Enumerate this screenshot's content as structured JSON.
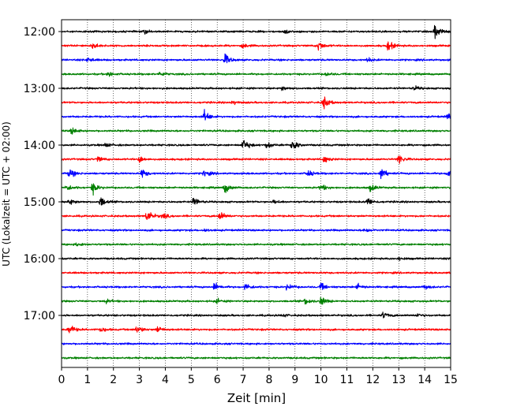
{
  "chart_data": {
    "type": "line",
    "title": "",
    "xlabel": "Zeit  [min]",
    "ylabel": "UTC (Lokalzeit = UTC + 02:00)",
    "xlim": [
      0,
      15
    ],
    "x_ticks": [
      "0",
      "1",
      "2",
      "3",
      "4",
      "5",
      "6",
      "7",
      "8",
      "9",
      "10",
      "11",
      "12",
      "13",
      "14",
      "15"
    ],
    "grid": "vertical dotted lines at each minute",
    "y_tick_labels": [
      "12:00",
      "13:00",
      "14:00",
      "15:00",
      "16:00",
      "17:00"
    ],
    "trace_interval_min": 15,
    "trace_colors": [
      "#000000",
      "#ff0000",
      "#0000ff",
      "#008000"
    ],
    "traces": [
      {
        "start": "12:00",
        "color": "#000000",
        "events": [
          [
            14.4,
            1.0
          ],
          [
            3.2,
            0.3
          ],
          [
            8.6,
            0.3
          ]
        ]
      },
      {
        "start": "12:15",
        "color": "#ff0000",
        "events": [
          [
            1.2,
            0.5
          ],
          [
            9.9,
            0.7
          ],
          [
            12.6,
            0.8
          ],
          [
            7.0,
            0.3
          ]
        ]
      },
      {
        "start": "12:30",
        "color": "#0000ff",
        "events": [
          [
            6.3,
            0.9
          ],
          [
            1.0,
            0.4
          ],
          [
            11.8,
            0.3
          ]
        ]
      },
      {
        "start": "12:45",
        "color": "#008000",
        "events": [
          [
            1.8,
            0.4
          ],
          [
            3.8,
            0.35
          ],
          [
            10.2,
            0.3
          ]
        ]
      },
      {
        "start": "13:00",
        "color": "#000000",
        "events": [
          [
            8.5,
            0.3
          ],
          [
            13.6,
            0.3
          ]
        ]
      },
      {
        "start": "13:15",
        "color": "#ff0000",
        "events": [
          [
            10.1,
            1.0
          ],
          [
            6.6,
            0.3
          ]
        ]
      },
      {
        "start": "13:30",
        "color": "#0000ff",
        "events": [
          [
            5.5,
            0.9
          ],
          [
            14.9,
            0.5
          ]
        ]
      },
      {
        "start": "13:45",
        "color": "#008000",
        "events": [
          [
            0.4,
            0.5
          ]
        ]
      },
      {
        "start": "14:00",
        "color": "#000000",
        "events": [
          [
            7.0,
            1.0
          ],
          [
            8.9,
            0.9
          ],
          [
            7.9,
            0.5
          ],
          [
            1.7,
            0.3
          ]
        ]
      },
      {
        "start": "14:15",
        "color": "#ff0000",
        "events": [
          [
            3.0,
            0.5
          ],
          [
            13.0,
            0.8
          ],
          [
            10.1,
            0.6
          ],
          [
            1.4,
            0.4
          ]
        ]
      },
      {
        "start": "14:30",
        "color": "#0000ff",
        "events": [
          [
            0.3,
            0.7
          ],
          [
            3.1,
            0.7
          ],
          [
            12.3,
            0.9
          ],
          [
            14.9,
            0.7
          ],
          [
            9.5,
            0.5
          ],
          [
            5.5,
            0.5
          ]
        ]
      },
      {
        "start": "14:45",
        "color": "#008000",
        "events": [
          [
            1.2,
            0.8
          ],
          [
            6.3,
            0.8
          ],
          [
            0.2,
            0.5
          ],
          [
            10.0,
            0.5
          ],
          [
            11.9,
            0.6
          ]
        ]
      },
      {
        "start": "15:00",
        "color": "#000000",
        "events": [
          [
            1.5,
            0.8
          ],
          [
            5.1,
            0.7
          ],
          [
            11.8,
            0.6
          ],
          [
            0.3,
            0.5
          ],
          [
            8.2,
            0.3
          ]
        ]
      },
      {
        "start": "15:15",
        "color": "#ff0000",
        "events": [
          [
            3.3,
            1.0
          ],
          [
            6.1,
            0.7
          ],
          [
            3.9,
            0.4
          ]
        ]
      },
      {
        "start": "15:30",
        "color": "#0000ff",
        "events": [
          [
            11.7,
            0.4
          ],
          [
            5.5,
            0.2
          ]
        ]
      },
      {
        "start": "15:45",
        "color": "#008000",
        "events": [
          [
            0.6,
            0.3
          ]
        ]
      },
      {
        "start": "16:00",
        "color": "#000000",
        "events": [
          [
            13.0,
            0.25
          ]
        ]
      },
      {
        "start": "16:15",
        "color": "#ff0000",
        "events": []
      },
      {
        "start": "16:30",
        "color": "#0000ff",
        "events": [
          [
            5.9,
            0.6
          ],
          [
            7.1,
            0.55
          ],
          [
            8.7,
            0.5
          ],
          [
            10.0,
            0.5
          ],
          [
            11.4,
            0.45
          ],
          [
            14.0,
            0.3
          ]
        ]
      },
      {
        "start": "16:45",
        "color": "#008000",
        "events": [
          [
            10.0,
            0.7
          ],
          [
            9.4,
            0.5
          ],
          [
            1.7,
            0.3
          ],
          [
            6.0,
            0.3
          ]
        ]
      },
      {
        "start": "17:00",
        "color": "#000000",
        "events": [
          [
            12.4,
            0.5
          ],
          [
            13.7,
            0.3
          ],
          [
            8.5,
            0.2
          ]
        ]
      },
      {
        "start": "17:15",
        "color": "#ff0000",
        "events": [
          [
            0.3,
            0.8
          ],
          [
            2.9,
            0.7
          ],
          [
            3.7,
            0.5
          ],
          [
            1.5,
            0.4
          ]
        ]
      },
      {
        "start": "17:30",
        "color": "#0000ff",
        "events": []
      },
      {
        "start": "17:45",
        "color": "#008000",
        "events": []
      }
    ]
  }
}
